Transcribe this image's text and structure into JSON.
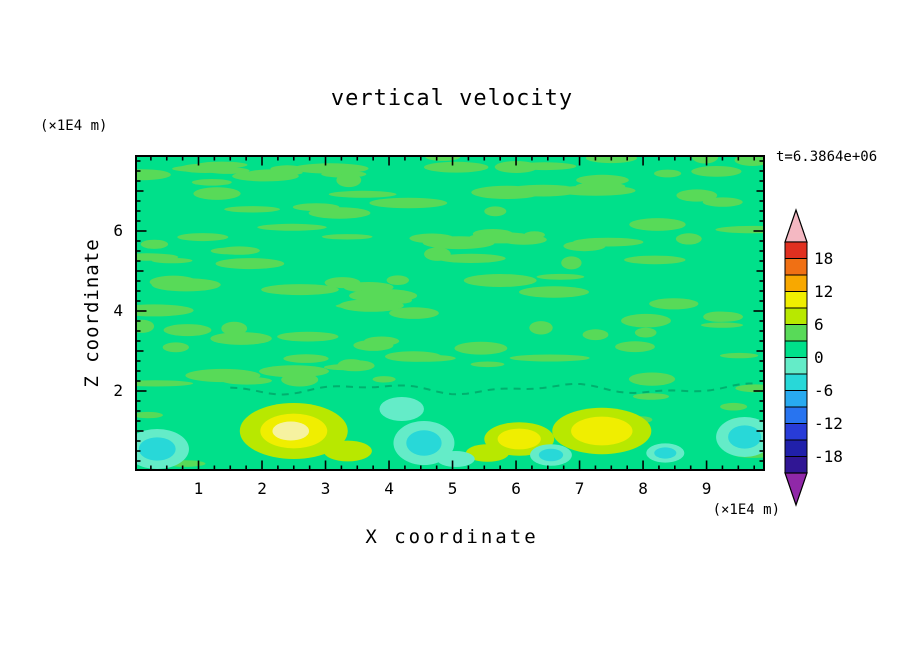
{
  "chart_data": {
    "type": "heatmap",
    "title": "vertical velocity",
    "time": "t=6.3864e+06",
    "xlabel": "X coordinate",
    "ylabel": "Z coordinate",
    "x_unit": "(×1E4 m)",
    "y_unit": "(×1E4 m)",
    "xlim": [
      0,
      9.92
    ],
    "ylim": [
      0,
      7.9
    ],
    "xticks": [
      1,
      2,
      3,
      4,
      5,
      6,
      7,
      8,
      9
    ],
    "yticks": [
      2,
      4,
      6
    ],
    "grid": false,
    "legend_position": "right",
    "colorbar": {
      "orientation": "vertical",
      "contour_interval": 3,
      "value_range": [
        -21,
        21
      ],
      "tick_labels": [
        18,
        12,
        6,
        0,
        -6,
        -12,
        -18
      ],
      "arrow_top_color": "#f4b8c2",
      "arrow_bottom_color": "#9028a8",
      "band_colors_top_to_bottom": [
        "#e03020",
        "#f07014",
        "#f8a800",
        "#f0ee00",
        "#b8e800",
        "#58da58",
        "#00e08a",
        "#64ecc8",
        "#28d8d8",
        "#28aaf0",
        "#2874f0",
        "#283cd8",
        "#2020aa",
        "#301694"
      ]
    },
    "field": {
      "background_color": "#00e08a",
      "background_band": "0 to 3",
      "mottle_color": "#58da58",
      "mottle": {
        "seed": 7,
        "count_upper": 110,
        "count_lower": 12
      },
      "zero_contour": {
        "z": 2.05,
        "x_start": 1.5,
        "x_end": 9.85,
        "color": "#00b06e"
      },
      "palette": {
        "chartreuse": "#b8e800",
        "yellow": "#f0ee00",
        "pale_core": "#f6f2a0",
        "aquamarine": "#64ecc8",
        "cyan": "#28d8d8"
      },
      "features": [
        {
          "kind": "updraft",
          "x": 2.5,
          "z": 1.0,
          "rx": 0.85,
          "rz": 0.7,
          "core": true,
          "peak_band": "9 to 12"
        },
        {
          "kind": "updraft",
          "x": 6.05,
          "z": 0.8,
          "rx": 0.55,
          "rz": 0.42,
          "core": false,
          "peak_band": "6 to 9"
        },
        {
          "kind": "updraft",
          "x": 7.35,
          "z": 1.0,
          "rx": 0.78,
          "rz": 0.58,
          "core": false,
          "peak_band": "6 to 9"
        },
        {
          "kind": "updraft-weak",
          "x": 3.35,
          "z": 0.5,
          "rx": 0.38,
          "rz": 0.26
        },
        {
          "kind": "updraft-weak",
          "x": 5.55,
          "z": 0.45,
          "rx": 0.34,
          "rz": 0.22
        },
        {
          "kind": "downdraft",
          "x": 4.55,
          "z": 0.7,
          "rx": 0.48,
          "rz": 0.55,
          "peak_band": "-3 to -6"
        },
        {
          "kind": "downdraft",
          "x": 6.55,
          "z": 0.4,
          "rx": 0.33,
          "rz": 0.27,
          "peak_band": "-3 to -6"
        },
        {
          "kind": "downdraft",
          "x": 0.35,
          "z": 0.55,
          "rx": 0.5,
          "rz": 0.5,
          "peak_band": "-3 to -6"
        },
        {
          "kind": "downdraft",
          "x": 8.35,
          "z": 0.45,
          "rx": 0.3,
          "rz": 0.24,
          "peak_band": "-3 to -6"
        },
        {
          "kind": "downdraft",
          "x": 9.6,
          "z": 0.85,
          "rx": 0.45,
          "rz": 0.5,
          "peak_band": "-3 to -6"
        },
        {
          "kind": "downdraft-weak",
          "x": 4.2,
          "z": 1.55,
          "rx": 0.35,
          "rz": 0.3
        },
        {
          "kind": "downdraft-weak",
          "x": 5.05,
          "z": 0.3,
          "rx": 0.3,
          "rz": 0.2
        }
      ]
    }
  }
}
